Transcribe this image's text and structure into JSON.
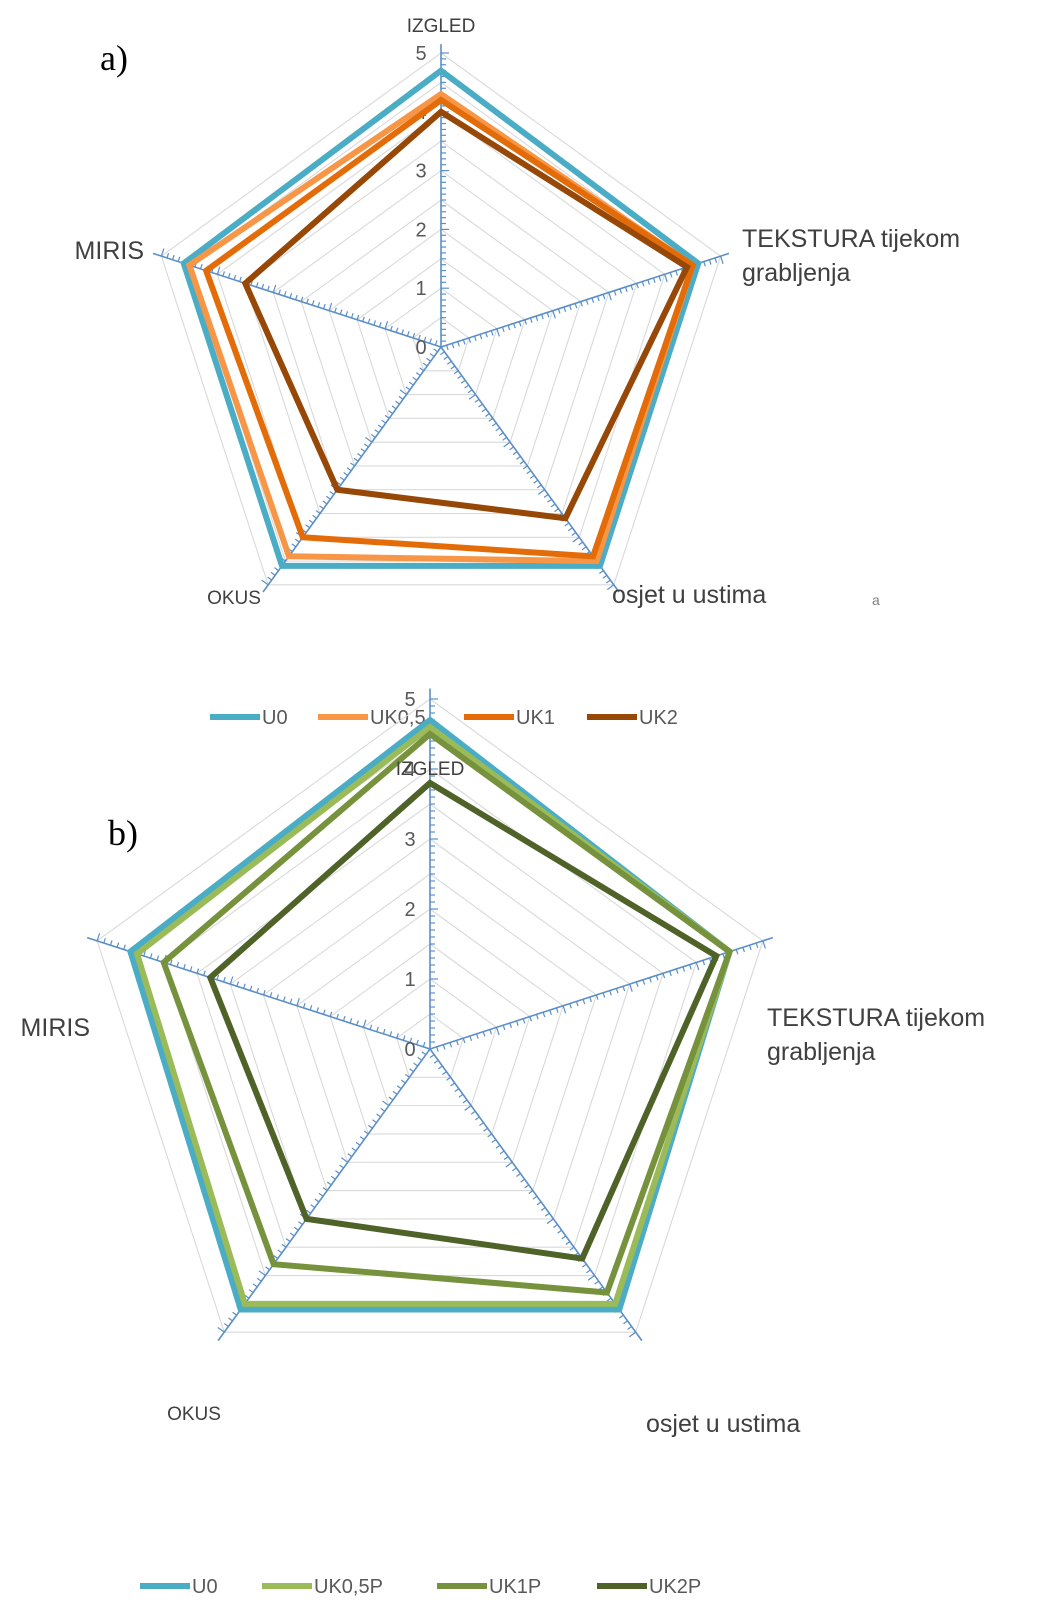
{
  "chart_data": [
    {
      "type": "radar",
      "panel_label": "a)",
      "axes": [
        "IZGLED",
        "TEKSTURA tijekom grabljenja",
        "osjet u ustima",
        "OKUS",
        "MIRIS"
      ],
      "axis_display": [
        [
          "IZGLED"
        ],
        [
          "TEKSTURA tijekom",
          "grabljenja"
        ],
        [
          "osjet u ustima"
        ],
        [
          "OKUS"
        ],
        [
          "MIRIS"
        ]
      ],
      "range": [
        0,
        5
      ],
      "ticks": [
        "0",
        "1",
        "2",
        "3",
        "4",
        "5"
      ],
      "stray_text": "a",
      "series": [
        {
          "name": "U0",
          "color": "#4BACC6",
          "values": [
            4.7,
            4.6,
            4.6,
            4.6,
            4.6
          ]
        },
        {
          "name": "UK0,5",
          "color": "#F79646",
          "values": [
            4.3,
            4.5,
            4.5,
            4.4,
            4.5
          ]
        },
        {
          "name": "UK1",
          "color": "#E36C09",
          "values": [
            4.2,
            4.5,
            4.4,
            4.0,
            4.2
          ]
        },
        {
          "name": "UK2",
          "color": "#974706",
          "values": [
            4.0,
            4.4,
            3.6,
            3.0,
            3.5
          ]
        }
      ],
      "legend": "bottom"
    },
    {
      "type": "radar",
      "panel_label": "b)",
      "axes": [
        "IZGLED",
        "TEKSTURA tijekom grabljenja",
        "osjet u ustima",
        "OKUS",
        "MIRIS"
      ],
      "axis_display": [
        [
          "IZGLED"
        ],
        [
          "TEKSTURA tijekom",
          "grabljenja"
        ],
        [
          "osjet u ustima"
        ],
        [
          "OKUS"
        ],
        [
          "MIRIS"
        ]
      ],
      "range": [
        0,
        5
      ],
      "ticks": [
        "0",
        "1",
        "2",
        "3",
        "4",
        "5"
      ],
      "series": [
        {
          "name": "U0",
          "color": "#4BACC6",
          "values": [
            4.7,
            4.5,
            4.6,
            4.6,
            4.5
          ]
        },
        {
          "name": "UK0,5P",
          "color": "#9BBB59",
          "values": [
            4.6,
            4.5,
            4.5,
            4.5,
            4.4
          ]
        },
        {
          "name": "UK1P",
          "color": "#76923C",
          "values": [
            4.5,
            4.5,
            4.3,
            3.8,
            4.0
          ]
        },
        {
          "name": "UK2P",
          "color": "#4F6228",
          "values": [
            3.8,
            4.3,
            3.7,
            3.0,
            3.3
          ]
        }
      ],
      "legend": "bottom"
    }
  ]
}
